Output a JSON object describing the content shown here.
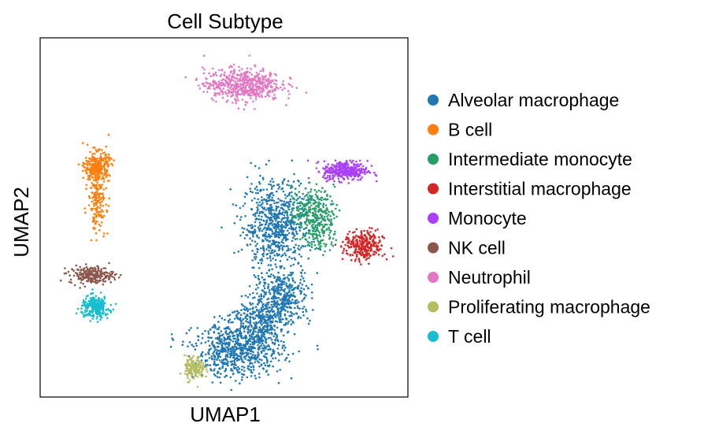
{
  "chart_data": {
    "type": "scatter",
    "title": "Cell Subtype",
    "xlabel": "UMAP1",
    "ylabel": "UMAP2",
    "xlim": [
      0,
      100
    ],
    "ylim": [
      0,
      100
    ],
    "ticks": false,
    "grid": false,
    "legend_position": "right",
    "point_size": "small",
    "series": [
      {
        "name": "Alveolar macrophage",
        "color": "#1f77b4",
        "clusters": [
          {
            "cx": 64,
            "cy": 48,
            "sx": 6,
            "sy": 8,
            "n": 700
          },
          {
            "cx": 66,
            "cy": 28,
            "sx": 5,
            "sy": 5,
            "n": 400
          },
          {
            "cx": 54,
            "cy": 13,
            "sx": 8,
            "sy": 5,
            "n": 700
          },
          {
            "cx": 59,
            "cy": 21,
            "sx": 5,
            "sy": 4,
            "n": 300
          }
        ]
      },
      {
        "name": "B cell",
        "color": "#ff7f0e",
        "clusters": [
          {
            "cx": 15.5,
            "cy": 64,
            "sx": 2.2,
            "sy": 2.8,
            "n": 320
          },
          {
            "cx": 15.5,
            "cy": 54,
            "sx": 1.6,
            "sy": 5,
            "n": 160
          }
        ]
      },
      {
        "name": "Intermediate monocyte",
        "color": "#279e68",
        "clusters": [
          {
            "cx": 74,
            "cy": 52,
            "sx": 4,
            "sy": 4,
            "n": 250
          },
          {
            "cx": 76,
            "cy": 46,
            "sx": 3,
            "sy": 4,
            "n": 120
          }
        ]
      },
      {
        "name": "Interstitial macrophage",
        "color": "#d62728",
        "clusters": [
          {
            "cx": 88,
            "cy": 42,
            "sx": 3.5,
            "sy": 2.8,
            "n": 300
          }
        ]
      },
      {
        "name": "Monocyte",
        "color": "#aa40fc",
        "clusters": [
          {
            "cx": 83,
            "cy": 63,
            "sx": 4,
            "sy": 1.8,
            "n": 350
          }
        ]
      },
      {
        "name": "NK cell",
        "color": "#8c564b",
        "clusters": [
          {
            "cx": 14,
            "cy": 34,
            "sx": 4,
            "sy": 1.6,
            "n": 220
          }
        ]
      },
      {
        "name": "Neutrophil",
        "color": "#e377c2",
        "clusters": [
          {
            "cx": 55,
            "cy": 87,
            "sx": 7,
            "sy": 3,
            "n": 550
          }
        ]
      },
      {
        "name": "Proliferating macrophage",
        "color": "#b5bd61",
        "clusters": [
          {
            "cx": 42,
            "cy": 8,
            "sx": 1.8,
            "sy": 2.2,
            "n": 150
          }
        ]
      },
      {
        "name": "T cell",
        "color": "#17becf",
        "clusters": [
          {
            "cx": 15,
            "cy": 25,
            "sx": 2.5,
            "sy": 2,
            "n": 260
          }
        ]
      }
    ]
  }
}
